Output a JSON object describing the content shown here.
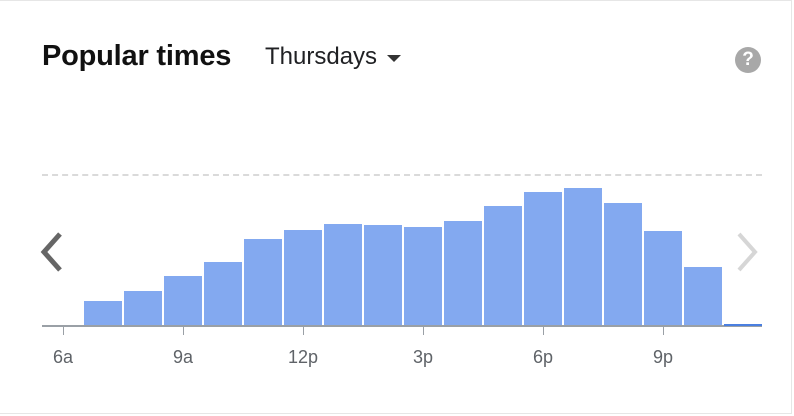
{
  "header": {
    "title": "Popular times",
    "day": "Thursdays"
  },
  "icons": {
    "help": "?",
    "help_color": "#a8a8a8",
    "prev": "chevron-left-icon",
    "next": "chevron-right-icon"
  },
  "colors": {
    "bar": "#83a9f0",
    "current_hour": "#4a7fe0"
  },
  "chart_data": {
    "type": "bar",
    "title": "Popular times",
    "hours": [
      "6a",
      "7a",
      "8a",
      "9a",
      "10a",
      "11a",
      "12p",
      "1p",
      "2p",
      "3p",
      "4p",
      "5p",
      "6p",
      "7p",
      "8p",
      "9p",
      "10p"
    ],
    "values": [
      0,
      16,
      23,
      33,
      42,
      58,
      64,
      68,
      67,
      66,
      70,
      80,
      89,
      92,
      82,
      63,
      39
    ],
    "ylim": [
      0,
      100
    ],
    "tick_labels": [
      "6a",
      "9a",
      "12p",
      "3p",
      "6p",
      "9p"
    ],
    "tick_label_hours": [
      "6a",
      "9a",
      "12p",
      "3p",
      "6p",
      "9p"
    ]
  }
}
